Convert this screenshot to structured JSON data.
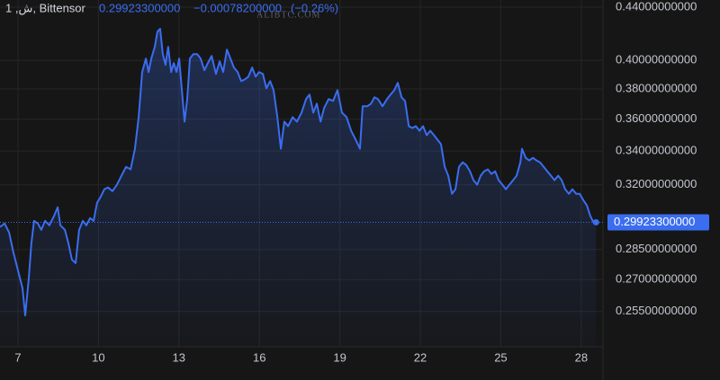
{
  "chart_data": {
    "type": "line",
    "title": "1 ,ﺵ, Bittensor",
    "change": "−0.00078200000",
    "change_percent": "(−0.26%)",
    "watermark": "ALIBTC.COM",
    "color": "#3a6df0",
    "log_scale": true,
    "grid": true,
    "last_value": {
      "value": 0.299233,
      "label": "0.29923300000"
    },
    "xlim": [
      6.33,
      28.81
    ],
    "xticks": [
      7,
      10,
      13,
      16,
      19,
      22,
      25,
      28
    ],
    "ylim": [
      0.2394,
      0.4457
    ],
    "yticks": [
      {
        "value": 0.44,
        "label": "0.44000000000"
      },
      {
        "value": 0.4,
        "label": "0.40000000000"
      },
      {
        "value": 0.38,
        "label": "0.38000000000"
      },
      {
        "value": 0.36,
        "label": "0.36000000000"
      },
      {
        "value": 0.34,
        "label": "0.34000000000"
      },
      {
        "value": 0.32,
        "label": "0.32000000000"
      },
      {
        "value": 0.285,
        "label": "0.28500000000"
      },
      {
        "value": 0.27,
        "label": "0.27000000000"
      },
      {
        "value": 0.255,
        "label": "0.25500000000"
      }
    ],
    "x": [
      6.33,
      6.5,
      6.67,
      6.83,
      7.0,
      7.17,
      7.27,
      7.4,
      7.5,
      7.6,
      7.74,
      7.87,
      8.01,
      8.17,
      8.34,
      8.48,
      8.58,
      8.75,
      8.88,
      9.01,
      9.15,
      9.28,
      9.42,
      9.55,
      9.69,
      9.82,
      9.95,
      10.09,
      10.22,
      10.36,
      10.52,
      10.69,
      10.86,
      11.03,
      11.2,
      11.36,
      11.5,
      11.63,
      11.77,
      11.87,
      11.97,
      12.1,
      12.2,
      12.3,
      12.4,
      12.5,
      12.6,
      12.71,
      12.81,
      12.91,
      13.01,
      13.11,
      13.21,
      13.31,
      13.41,
      13.54,
      13.68,
      13.81,
      13.95,
      14.08,
      14.22,
      14.38,
      14.52,
      14.65,
      14.79,
      14.92,
      15.05,
      15.19,
      15.32,
      15.46,
      15.59,
      15.73,
      15.86,
      15.99,
      16.13,
      16.26,
      16.4,
      16.53,
      16.67,
      16.8,
      16.93,
      17.07,
      17.24,
      17.4,
      17.57,
      17.74,
      17.87,
      18.01,
      18.14,
      18.28,
      18.41,
      18.58,
      18.75,
      18.91,
      19.08,
      19.25,
      19.42,
      19.59,
      19.75,
      19.85,
      20.02,
      20.16,
      20.29,
      20.42,
      20.59,
      20.76,
      20.89,
      21.03,
      21.16,
      21.3,
      21.43,
      21.57,
      21.7,
      21.83,
      21.97,
      22.1,
      22.24,
      22.37,
      22.51,
      22.64,
      22.77,
      22.91,
      23.04,
      23.18,
      23.31,
      23.44,
      23.58,
      23.71,
      23.85,
      23.98,
      24.12,
      24.25,
      24.38,
      24.52,
      24.65,
      24.79,
      24.92,
      25.06,
      25.19,
      25.32,
      25.46,
      25.59,
      25.73,
      25.79,
      25.93,
      26.06,
      26.2,
      26.33,
      26.46,
      26.6,
      26.73,
      26.87,
      27.0,
      27.14,
      27.27,
      27.4,
      27.54,
      27.67,
      27.81,
      27.94,
      28.08,
      28.21,
      28.34,
      28.48,
      28.55
    ],
    "values": [
      0.2967,
      0.2986,
      0.2938,
      0.2835,
      0.2745,
      0.2658,
      0.2532,
      0.2701,
      0.2882,
      0.3,
      0.2986,
      0.2952,
      0.3,
      0.2976,
      0.3025,
      0.3074,
      0.2976,
      0.2952,
      0.2882,
      0.2799,
      0.2781,
      0.2952,
      0.3,
      0.2976,
      0.3015,
      0.3,
      0.3099,
      0.3134,
      0.3175,
      0.3185,
      0.3164,
      0.3201,
      0.3253,
      0.3305,
      0.329,
      0.3414,
      0.3613,
      0.3917,
      0.4013,
      0.3917,
      0.4013,
      0.4098,
      0.4212,
      0.4233,
      0.4045,
      0.3968,
      0.4098,
      0.3917,
      0.3981,
      0.3917,
      0.4013,
      0.3792,
      0.3584,
      0.3732,
      0.4013,
      0.4045,
      0.4045,
      0.4013,
      0.393,
      0.3981,
      0.4032,
      0.3904,
      0.3993,
      0.3917,
      0.4078,
      0.4013,
      0.3949,
      0.3917,
      0.3854,
      0.3866,
      0.3885,
      0.3949,
      0.3885,
      0.3917,
      0.3904,
      0.3805,
      0.3854,
      0.3792,
      0.3613,
      0.3414,
      0.3584,
      0.3555,
      0.3613,
      0.3584,
      0.3642,
      0.3732,
      0.3762,
      0.3642,
      0.3701,
      0.3584,
      0.3671,
      0.3732,
      0.372,
      0.3792,
      0.3642,
      0.3613,
      0.3526,
      0.347,
      0.3414,
      0.3684,
      0.3684,
      0.3701,
      0.3744,
      0.3732,
      0.3684,
      0.3732,
      0.3762,
      0.3792,
      0.3842,
      0.3744,
      0.372,
      0.3555,
      0.3543,
      0.3555,
      0.3526,
      0.3555,
      0.3498,
      0.3526,
      0.3498,
      0.347,
      0.3442,
      0.3305,
      0.3253,
      0.3149,
      0.3175,
      0.3305,
      0.3332,
      0.3316,
      0.3279,
      0.3227,
      0.3201,
      0.3253,
      0.3279,
      0.329,
      0.3263,
      0.3279,
      0.3227,
      0.3201,
      0.3175,
      0.3201,
      0.3227,
      0.3253,
      0.3332,
      0.3414,
      0.3359,
      0.3343,
      0.3359,
      0.3343,
      0.3332,
      0.3305,
      0.3279,
      0.3253,
      0.3227,
      0.3253,
      0.3227,
      0.3175,
      0.3149,
      0.3175,
      0.3149,
      0.3149,
      0.3113,
      0.3084,
      0.3025,
      0.2986,
      0.299233
    ]
  }
}
